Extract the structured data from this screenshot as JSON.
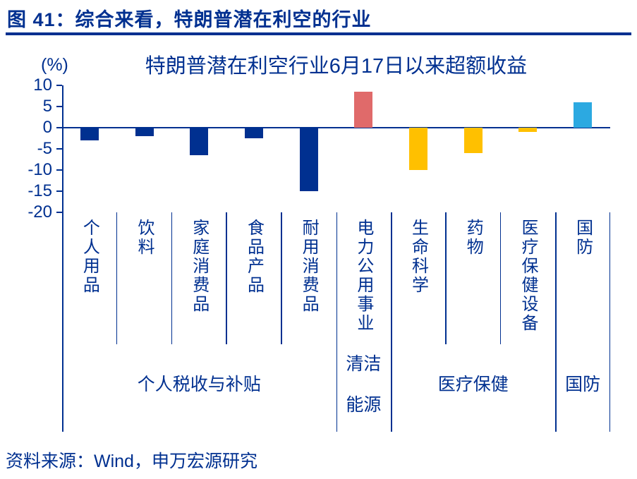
{
  "header": {
    "title": "图 41：综合来看，特朗普潜在利空的行业"
  },
  "footer": {
    "source": "资料来源：Wind，申万宏源研究"
  },
  "colors": {
    "navy": "#003090",
    "red": "#E06A6A",
    "yellow": "#FFC000",
    "cyan": "#2CA9E1"
  },
  "chart_data": {
    "type": "bar",
    "title": "特朗普潜在利空行业6月17日以来超额收益",
    "unit_label": "(%)",
    "ylim": [
      -20,
      10
    ],
    "yticks": [
      10,
      5,
      0,
      -5,
      -10,
      -15,
      -20
    ],
    "grid": false,
    "legend": "none",
    "categories": [
      "个人用品",
      "饮料",
      "家庭消费品",
      "食品产品",
      "耐用消费品",
      "电力公用事业",
      "生命科学",
      "药物",
      "医疗保健设备",
      "国防"
    ],
    "values": [
      -3,
      -2,
      -6.5,
      -2.5,
      -15,
      8.5,
      -10,
      -6,
      -1,
      6
    ],
    "bar_colors": [
      "navy",
      "navy",
      "navy",
      "navy",
      "navy",
      "red",
      "yellow",
      "yellow",
      "yellow",
      "cyan"
    ],
    "groups": [
      {
        "label": "个人税收与补贴",
        "lines": [
          "个人税收与补贴"
        ],
        "span": 5
      },
      {
        "label": "清洁能源",
        "lines": [
          "清洁",
          "能源"
        ],
        "span": 1
      },
      {
        "label": "医疗保健",
        "lines": [
          "医疗保健"
        ],
        "span": 3
      },
      {
        "label": "国防",
        "lines": [
          "国防"
        ],
        "span": 1
      }
    ]
  }
}
